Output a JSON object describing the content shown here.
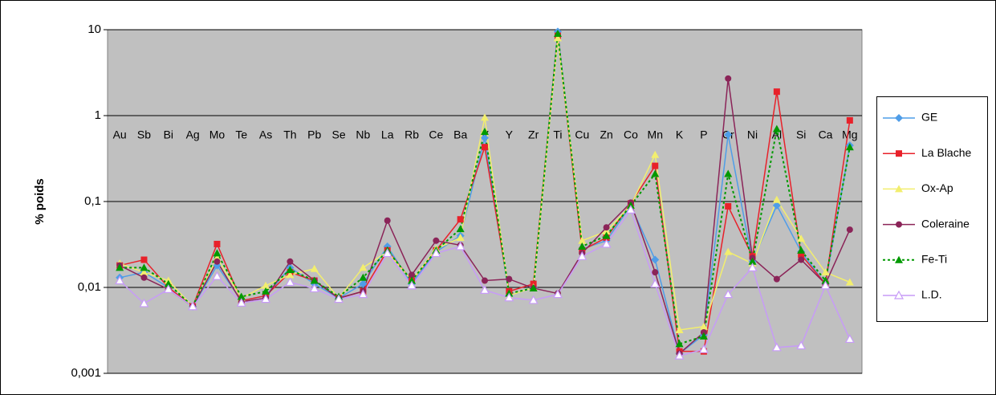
{
  "chart_data": {
    "type": "line",
    "y_label": "% poids",
    "log_y": true,
    "grid": true,
    "legend": "right",
    "categories": [
      "Au",
      "Sb",
      "Bi",
      "Ag",
      "Mo",
      "Te",
      "As",
      "Th",
      "Pb",
      "Se",
      "Nb",
      "La",
      "Rb",
      "Ce",
      "Ba",
      "V",
      "Y",
      "Zr",
      "Ti",
      "Cu",
      "Zn",
      "Co",
      "Mn",
      "K",
      "P",
      "Cr",
      "Ni",
      "Al",
      "Si",
      "Ca",
      "Mg"
    ],
    "ylim": [
      0.001,
      10
    ],
    "yticks": [
      {
        "value": 0.001,
        "label": "0,001"
      },
      {
        "value": 0.01,
        "label": "0,01"
      },
      {
        "value": 0.1,
        "label": "0,1"
      },
      1,
      10
    ],
    "series": [
      {
        "name": "GE",
        "color": "#4f9de8",
        "marker": "diamond",
        "dash": "solid",
        "values": [
          0.013,
          0.015,
          0.01,
          0.006,
          0.018,
          0.007,
          0.008,
          0.017,
          0.011,
          0.0075,
          0.011,
          0.03,
          0.011,
          0.026,
          0.04,
          0.55,
          0.008,
          0.01,
          9.5,
          0.028,
          0.035,
          0.09,
          0.021,
          0.0017,
          0.0028,
          0.6,
          0.02,
          0.09,
          0.026,
          0.011,
          0.45
        ]
      },
      {
        "name": "La Blache",
        "color": "#e8212a",
        "marker": "square",
        "dash": "solid",
        "values": [
          0.018,
          0.021,
          0.01,
          0.006,
          0.032,
          0.007,
          0.008,
          0.015,
          0.012,
          0.0075,
          0.009,
          0.027,
          0.012,
          0.027,
          0.062,
          0.43,
          0.009,
          0.011,
          8.5,
          0.027,
          0.038,
          0.095,
          0.26,
          0.0018,
          0.0018,
          0.088,
          0.023,
          1.9,
          0.024,
          0.011,
          0.88
        ]
      },
      {
        "name": "Ox-Ap",
        "color": "#f2ee6e",
        "marker": "triangle",
        "dash": "solid",
        "values": [
          0.019,
          0.015,
          0.012,
          0.006,
          0.022,
          0.0075,
          0.0105,
          0.014,
          0.0165,
          0.0075,
          0.017,
          0.026,
          0.012,
          0.028,
          0.038,
          0.95,
          0.008,
          0.01,
          8,
          0.035,
          0.045,
          0.09,
          0.35,
          0.0032,
          0.0035,
          0.026,
          0.019,
          0.105,
          0.037,
          0.015,
          0.0115
        ]
      },
      {
        "name": "Coleraine",
        "color": "#8b2458",
        "marker": "circle",
        "dash": "solid",
        "values": [
          0.018,
          0.013,
          0.0095,
          0.006,
          0.02,
          0.0068,
          0.0075,
          0.02,
          0.012,
          0.0075,
          0.009,
          0.06,
          0.014,
          0.035,
          0.031,
          0.012,
          0.0125,
          0.0098,
          0.0085,
          0.025,
          0.05,
          0.097,
          0.015,
          0.0017,
          0.003,
          2.7,
          0.022,
          0.0125,
          0.021,
          0.011,
          0.047
        ]
      },
      {
        "name": "Fe-Ti",
        "color": "#009900",
        "marker": "triangle",
        "dash": "dotted",
        "values": [
          0.017,
          0.017,
          0.011,
          0.006,
          0.025,
          0.0078,
          0.009,
          0.016,
          0.012,
          0.0078,
          0.013,
          0.027,
          0.012,
          0.027,
          0.048,
          0.65,
          0.0085,
          0.0098,
          9,
          0.03,
          0.04,
          0.09,
          0.21,
          0.0022,
          0.0027,
          0.21,
          0.02,
          0.7,
          0.027,
          0.012,
          0.43
        ]
      },
      {
        "name": "L.D.",
        "color": "#c79bf7",
        "marker": "open-triangle",
        "dash": "solid",
        "values": [
          0.012,
          0.0065,
          0.0095,
          0.006,
          0.0135,
          0.0066,
          0.0073,
          0.0115,
          0.0097,
          0.0073,
          0.0083,
          0.025,
          0.0105,
          0.025,
          0.03,
          0.0093,
          0.0076,
          0.0071,
          0.0083,
          0.023,
          0.032,
          0.08,
          0.011,
          0.0016,
          0.0019,
          0.0083,
          0.017,
          0.002,
          0.0021,
          0.0105,
          0.0025
        ]
      }
    ]
  }
}
